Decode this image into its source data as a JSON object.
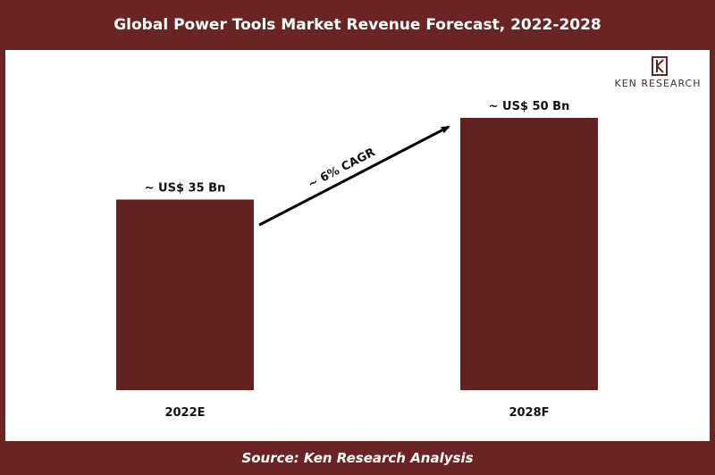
{
  "header": {
    "title": "Global Power Tools Market Revenue Forecast, 2022-2028"
  },
  "footer": {
    "source": "Source: Ken Research Analysis"
  },
  "logo": {
    "text": "KEN RESEARCH"
  },
  "colors": {
    "frame": "#6b2424",
    "bar": "#632222",
    "arrow": "#000000"
  },
  "chart_data": {
    "type": "bar",
    "title": "Global Power Tools Market Revenue Forecast, 2022-2028",
    "categories": [
      "2022E",
      "2028F"
    ],
    "values": [
      35,
      50
    ],
    "data_labels": [
      "~ US$ 35 Bn",
      "~ US$ 50 Bn"
    ],
    "annotation": "~ 6% CAGR",
    "ylim": [
      0,
      60
    ],
    "grid": false,
    "xlabel": "",
    "ylabel": ""
  }
}
